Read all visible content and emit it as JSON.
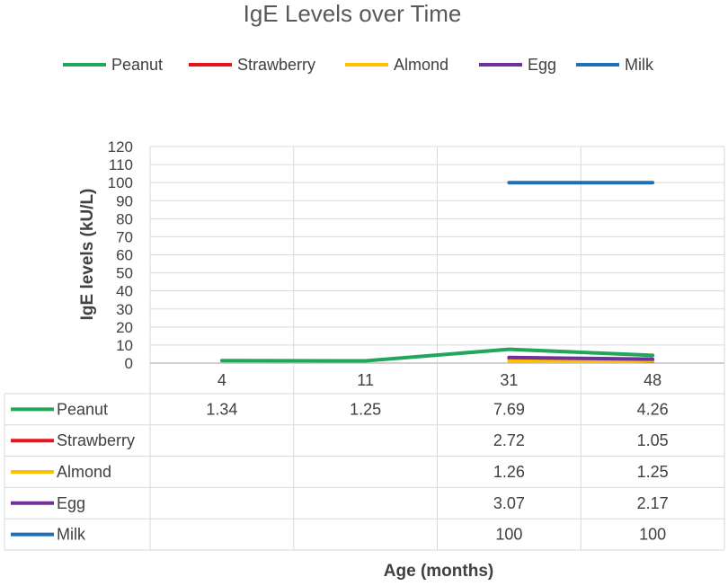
{
  "chart_data": {
    "type": "line",
    "title": "IgE Levels over Time",
    "xlabel": "Age (months)",
    "ylabel": "IgE levels (kU/L)",
    "categories": [
      "4",
      "11",
      "31",
      "48"
    ],
    "ylim": [
      0,
      120
    ],
    "y_ticks": [
      "0",
      "10",
      "20",
      "30",
      "40",
      "50",
      "60",
      "70",
      "80",
      "90",
      "100",
      "110",
      "120"
    ],
    "legend_position": "top",
    "grid": true,
    "data_table": true,
    "series": [
      {
        "name": "Peanut",
        "color": "#22a65a",
        "values": [
          1.34,
          1.25,
          7.69,
          4.26
        ],
        "labels": [
          "1.34",
          "1.25",
          "7.69",
          "4.26"
        ]
      },
      {
        "name": "Strawberry",
        "color": "#e8141c",
        "values": [
          null,
          null,
          2.72,
          1.05
        ],
        "labels": [
          "",
          "",
          "2.72",
          "1.05"
        ]
      },
      {
        "name": "Almond",
        "color": "#ffc000",
        "values": [
          null,
          null,
          1.26,
          1.25
        ],
        "labels": [
          "",
          "",
          "1.26",
          "1.25"
        ]
      },
      {
        "name": "Egg",
        "color": "#7030a0",
        "values": [
          null,
          null,
          3.07,
          2.17
        ],
        "labels": [
          "",
          "",
          "3.07",
          "2.17"
        ]
      },
      {
        "name": "Milk",
        "color": "#1f6fb4",
        "values": [
          null,
          null,
          100,
          100
        ],
        "labels": [
          "",
          "",
          "100",
          "100"
        ]
      }
    ]
  }
}
